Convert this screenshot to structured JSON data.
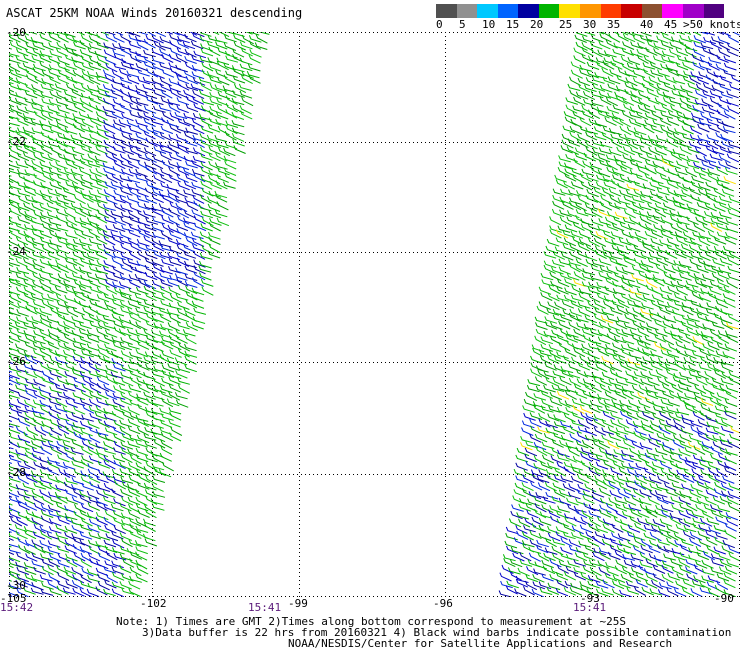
{
  "title": "ASCAT 25KM NOAA Winds 20160321 descending",
  "legend": {
    "colors": [
      "#505050",
      "#909090",
      "#00c8ff",
      "#0064ff",
      "#0000a0",
      "#00b400",
      "#ffe000",
      "#ff9600",
      "#ff3c00",
      "#c80000",
      "#8c5030",
      "#ff00ff",
      "#a000c8",
      "#500080"
    ],
    "labels": [
      "0",
      "5",
      "10",
      "15",
      "20",
      "25",
      "30",
      "35",
      "40",
      "45",
      ">50 knots"
    ]
  },
  "axes": {
    "y_labels": [
      "-20",
      "-22",
      "-24",
      "-26",
      "-28",
      "-30"
    ],
    "x_labels": [
      "-105",
      "-102",
      "-99",
      "-96",
      "-93",
      "-90"
    ]
  },
  "times": {
    "t1": "15:42",
    "t2": "15:41",
    "t3": "15:41"
  },
  "notes": {
    "line1": "Note: 1) Times are GMT 2)Times along bottom correspond to measurement at ~25S",
    "line2": "3)Data buffer is 22 hrs from 20160321 4) Black wind barbs indicate possible contamination",
    "line3": "NOAA/NESDIS/Center for Satellite Applications and Research"
  }
}
